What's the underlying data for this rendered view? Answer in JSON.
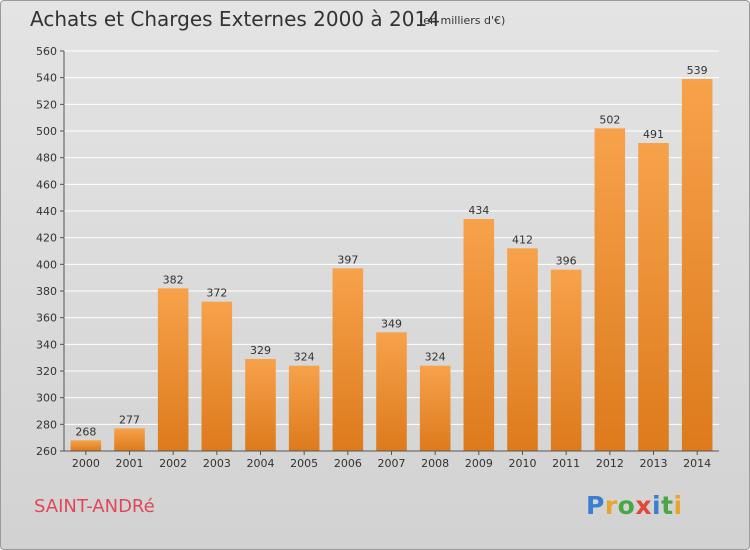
{
  "header": {
    "title": "Achats et Charges Externes 2000 à 2014",
    "subtitle": "(en milliers d'€)"
  },
  "footer": {
    "town": "SAINT-ANDRé",
    "brand_letters": [
      {
        "ch": "P",
        "color": "#3a7fd0"
      },
      {
        "ch": "r",
        "color": "#e8a42b"
      },
      {
        "ch": "o",
        "color": "#49a845"
      },
      {
        "ch": "x",
        "color": "#e2483a"
      },
      {
        "ch": "i",
        "color": "#3a7fd0"
      },
      {
        "ch": "t",
        "color": "#49a845"
      },
      {
        "ch": "i",
        "color": "#e8a42b"
      }
    ]
  },
  "colors": {
    "bar_light": "#f7a24b",
    "bar_dark": "#dd7a1c",
    "grid": "#ffffff",
    "axis": "#555555",
    "text": "#333333"
  },
  "chart_data": {
    "type": "bar",
    "title": "Achats et Charges Externes 2000 à 2014",
    "subtitle": "(en milliers d'€)",
    "categories": [
      "2000",
      "2001",
      "2002",
      "2003",
      "2004",
      "2005",
      "2006",
      "2007",
      "2008",
      "2009",
      "2010",
      "2011",
      "2012",
      "2013",
      "2014"
    ],
    "values": [
      268,
      277,
      382,
      372,
      329,
      324,
      397,
      349,
      324,
      434,
      412,
      396,
      502,
      491,
      539
    ],
    "data_labels": [
      "268",
      "277",
      "382",
      "372",
      "329",
      "324",
      "397",
      "349",
      "324",
      "434",
      "412",
      "396",
      "502",
      "491",
      "539"
    ],
    "ylim": [
      260,
      560
    ],
    "yticks": [
      260,
      280,
      300,
      320,
      340,
      360,
      380,
      400,
      420,
      440,
      460,
      480,
      500,
      520,
      540,
      560
    ],
    "grid": true,
    "xlabel": "",
    "ylabel": ""
  }
}
